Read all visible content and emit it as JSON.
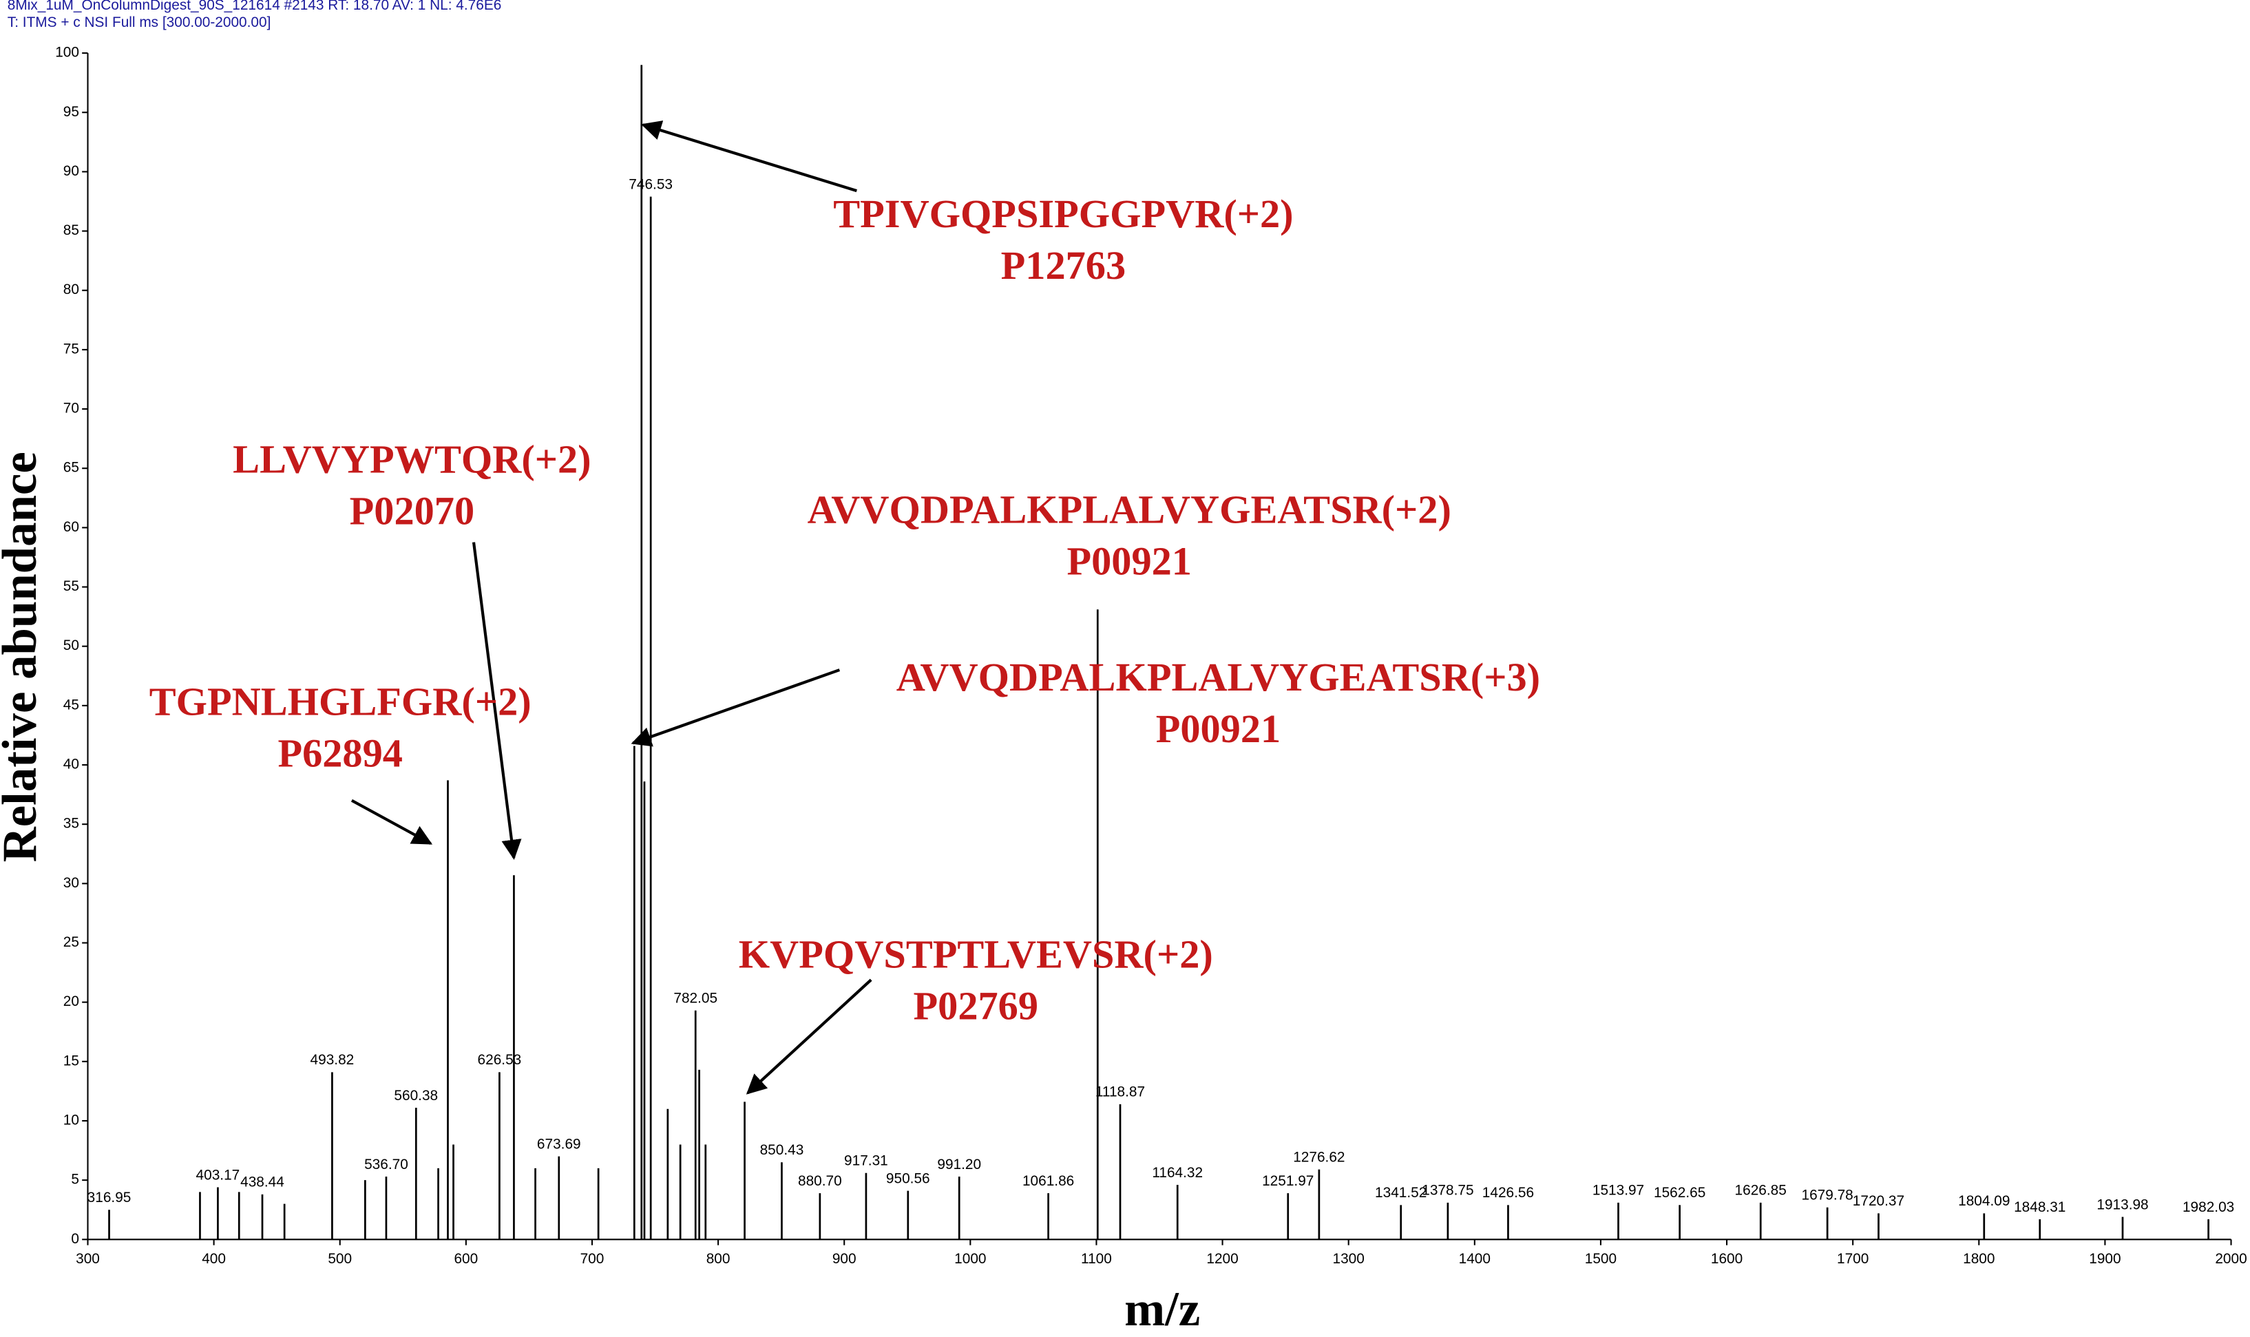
{
  "chart_data": {
    "type": "bar",
    "header": [
      "8Mix_1uM_OnColumnDigest_90S_121614 #2143  RT: 18.70  AV: 1  NL: 4.76E6",
      "T: ITMS + c NSI Full ms [300.00-2000.00]"
    ],
    "x_label": "m/z",
    "y_label": "Relative abundance",
    "xlim": [
      300,
      2000
    ],
    "xticks": [
      300,
      400,
      500,
      600,
      700,
      800,
      900,
      1000,
      1100,
      1200,
      1300,
      1400,
      1500,
      1600,
      1700,
      1800,
      1900,
      2000
    ],
    "ylim": [
      0,
      100
    ],
    "yticks": [
      0,
      5,
      10,
      15,
      20,
      25,
      30,
      35,
      40,
      45,
      50,
      55,
      60,
      65,
      70,
      75,
      80,
      85,
      90,
      95,
      100
    ],
    "color": "#000000",
    "x": [
      316.95,
      389,
      403.17,
      420,
      438.44,
      456,
      493.82,
      520,
      536.7,
      560.38,
      578,
      585.6,
      590,
      626.53,
      638,
      655,
      673.69,
      705,
      733.5,
      739.2,
      741.5,
      746.53,
      760,
      770,
      782.05,
      785,
      790,
      821,
      850.43,
      880.7,
      917.31,
      950.56,
      991.2,
      1061.86,
      1101,
      1118.87,
      1164.32,
      1251.97,
      1276.62,
      1341.52,
      1378.75,
      1426.56,
      1513.97,
      1562.65,
      1626.85,
      1679.78,
      1720.37,
      1804.09,
      1848.31,
      1913.98,
      1982.03
    ],
    "values": [
      2.5,
      4,
      4.4,
      4,
      3.8,
      3,
      14.1,
      5,
      5.3,
      11.1,
      6,
      38.7,
      8,
      14.1,
      30.7,
      6,
      7,
      6,
      41.6,
      99,
      38.6,
      87.9,
      11,
      8,
      19.3,
      14.3,
      8,
      11.6,
      6.5,
      3.9,
      5.6,
      4.1,
      5.3,
      3.9,
      53.1,
      11.4,
      4.6,
      3.9,
      5.9,
      2.9,
      3.1,
      2.9,
      3.1,
      2.9,
      3.1,
      2.7,
      2.2,
      2.2,
      1.7,
      1.9,
      1.7
    ],
    "x_labels": [
      "316.95",
      null,
      "403.17",
      null,
      "438.44",
      null,
      "493.82",
      null,
      "536.70",
      "560.38",
      null,
      null,
      null,
      "626.53",
      null,
      null,
      "673.69",
      null,
      null,
      null,
      null,
      "746.53",
      null,
      null,
      "782.05",
      null,
      null,
      null,
      "850.43",
      "880.70",
      "917.31",
      "950.56",
      "991.20",
      "1061.86",
      null,
      "1118.87",
      "1164.32",
      "1251.97",
      "1276.62",
      "1341.52",
      "1378.75",
      "1426.56",
      "1513.97",
      "1562.65",
      "1626.85",
      "1679.78",
      "1720.37",
      "1804.09",
      "1848.31",
      "1913.98",
      "1982.03"
    ],
    "annotations": [
      [
        "TPIVGQPSIPGGPVR(+2)",
        "P12763"
      ],
      [
        "LLVVYPWTQR(+2)",
        "P02070"
      ],
      [
        "AVVQDPALKPLALVYGEATSR(+2)",
        "P00921"
      ],
      [
        "AVVQDPALKPLALVYGEATSR(+3)",
        "P00921"
      ],
      [
        "TGPNLHGLFGR(+2)",
        "P62894"
      ],
      [
        "KVPQVSTPTLVEVSR(+2)",
        "P02769"
      ]
    ]
  }
}
